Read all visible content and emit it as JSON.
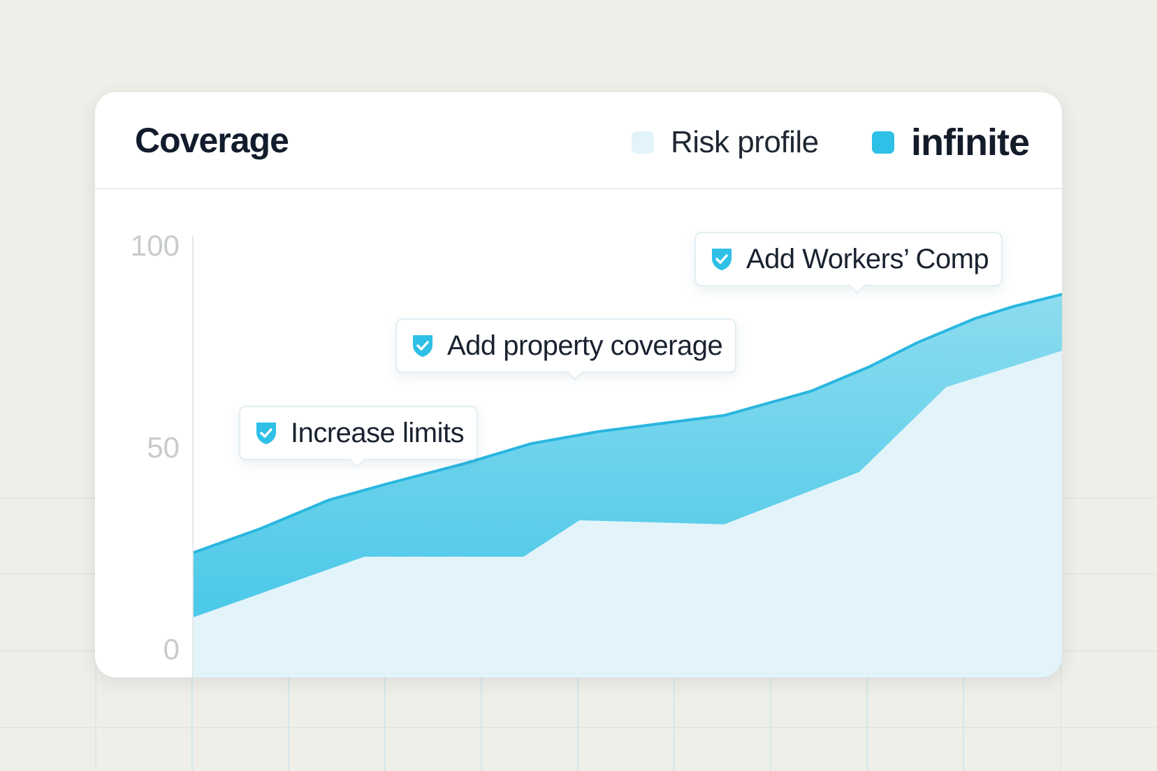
{
  "card": {
    "title": "Coverage"
  },
  "legend": [
    {
      "label": "Risk profile",
      "color": "#e2f4fa"
    },
    {
      "label": "infinite",
      "color": "#2ec0e6"
    }
  ],
  "callouts": [
    {
      "icon": "shield-check-icon",
      "label": "Increase limits"
    },
    {
      "icon": "shield-check-icon",
      "label": "Add property coverage"
    },
    {
      "icon": "shield-check-icon",
      "label": "Add Workers’ Comp"
    }
  ],
  "colors": {
    "background": "#efeee9",
    "card": "#ffffff",
    "accent": "#2ec0e6",
    "risk_fill": "#e2f4fa",
    "infinite_fill_top": "#8ddcef",
    "infinite_fill_bottom": "#3ec5e7",
    "line": "#29b6df",
    "axis_text": "#c8cbcc"
  },
  "chart_data": {
    "type": "area",
    "title": "Coverage",
    "xlabel": "",
    "ylabel": "",
    "ylim": [
      0,
      100
    ],
    "yticks": [
      0,
      50,
      100
    ],
    "grid": false,
    "legend_position": "top-right",
    "x": [
      0,
      1,
      2,
      3,
      4,
      5,
      6,
      7,
      8,
      9
    ],
    "series": [
      {
        "name": "Risk profile",
        "points": [
          [
            0,
            8
          ],
          [
            1.77,
            23
          ],
          [
            3.42,
            23
          ],
          [
            4.0,
            32
          ],
          [
            5.5,
            31
          ],
          [
            6.9,
            44
          ],
          [
            7.8,
            65
          ],
          [
            9.0,
            74
          ]
        ]
      },
      {
        "name": "infinite",
        "points": [
          [
            0,
            24
          ],
          [
            0.7,
            30
          ],
          [
            1.4,
            37
          ],
          [
            2.0,
            41
          ],
          [
            2.8,
            46
          ],
          [
            3.5,
            51
          ],
          [
            4.2,
            54
          ],
          [
            5.5,
            58
          ],
          [
            6.4,
            64
          ],
          [
            7.0,
            70
          ],
          [
            7.5,
            76
          ],
          [
            8.1,
            82
          ],
          [
            8.5,
            85
          ],
          [
            9.0,
            88
          ]
        ]
      }
    ]
  }
}
